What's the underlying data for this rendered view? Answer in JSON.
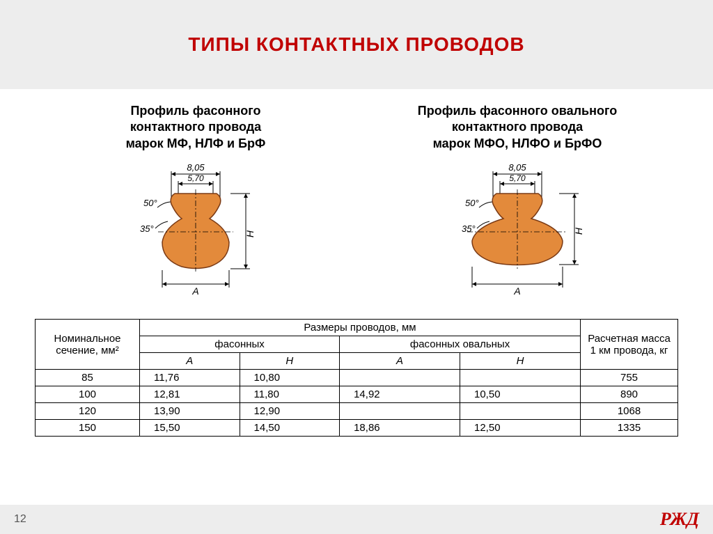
{
  "title": "ТИПЫ КОНТАКТНЫХ ПРОВОДОВ",
  "profiles": {
    "left": {
      "title_l1": "Профиль фасонного",
      "title_l2": "контактного провода",
      "title_l3": "марок МФ, НЛФ и БрФ"
    },
    "right": {
      "title_l1": "Профиль фасонного овального",
      "title_l2": "контактного провода",
      "title_l3": "марок МФО, НЛФО и БрФО"
    },
    "dims": {
      "top_outer": "8,05",
      "top_inner": "5,70",
      "angle_upper": "50°",
      "angle_lower": "35°",
      "width_label": "A",
      "height_label": "H"
    },
    "shape_color": "#e38a3b",
    "shape_stroke": "#7a3a15"
  },
  "table": {
    "header_section": "Номинальное сечение, мм²",
    "header_sizes": "Размеры проводов, мм",
    "header_shaped": "фасонных",
    "header_oval": "фасонных овальных",
    "header_A": "A",
    "header_H": "H",
    "header_mass": "Расчетная масса 1 км провода, кг",
    "rows": [
      {
        "section": "85",
        "fA": "11,76",
        "fH": "10,80",
        "oA": "",
        "oH": "",
        "mass": "755"
      },
      {
        "section": "100",
        "fA": "12,81",
        "fH": "11,80",
        "oA": "14,92",
        "oH": "10,50",
        "mass": "890"
      },
      {
        "section": "120",
        "fA": "13,90",
        "fH": "12,90",
        "oA": "",
        "oH": "",
        "mass": "1068"
      },
      {
        "section": "150",
        "fA": "15,50",
        "fH": "14,50",
        "oA": "18,86",
        "oH": "12,50",
        "mass": "1335"
      }
    ]
  },
  "footer": {
    "page": "12",
    "logo": "РЖД"
  }
}
